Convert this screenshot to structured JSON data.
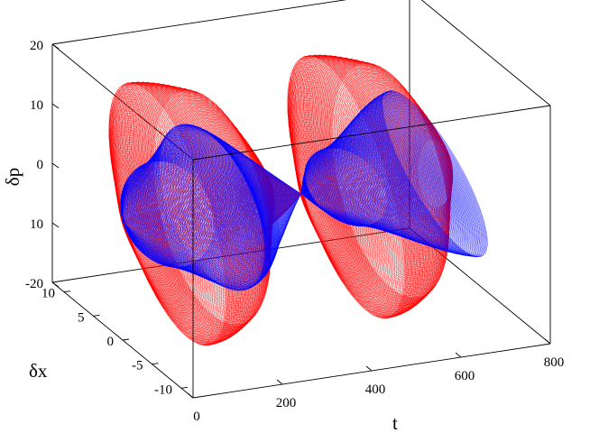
{
  "chart_data": {
    "type": "scatter",
    "title": "",
    "axes": {
      "t": {
        "label": "t",
        "range": [
          0,
          800
        ],
        "ticks": [
          "0",
          "200",
          "400",
          "600",
          "800"
        ]
      },
      "dx": {
        "label": "δx",
        "range": [
          -12,
          12
        ],
        "ticks": [
          "10",
          "5",
          "0",
          "-5",
          "-10"
        ]
      },
      "dp": {
        "label": "δp",
        "range": [
          -20,
          20
        ],
        "ticks": [
          "20",
          "10",
          "0",
          "10",
          "-20"
        ]
      }
    },
    "grid": false,
    "series": [
      {
        "color": "#ff0000",
        "note": "outer envelope (red spiral tube)",
        "t": [
          0,
          100,
          200,
          300,
          400,
          500,
          600,
          700
        ],
        "dx_amplitude": [
          0,
          10,
          10,
          3,
          0,
          10,
          10,
          3
        ],
        "dp_amplitude": [
          0,
          18,
          18,
          6,
          0,
          18,
          18,
          6
        ]
      },
      {
        "color": "#0000ff",
        "note": "inner spiral (blue)",
        "t": [
          0,
          100,
          200,
          300,
          400,
          500,
          600,
          700
        ],
        "dx_amplitude": [
          0,
          8,
          9,
          4,
          0,
          7,
          8,
          9
        ],
        "dp_amplitude": [
          0,
          10,
          12,
          6,
          0,
          7,
          8,
          9
        ]
      }
    ]
  }
}
